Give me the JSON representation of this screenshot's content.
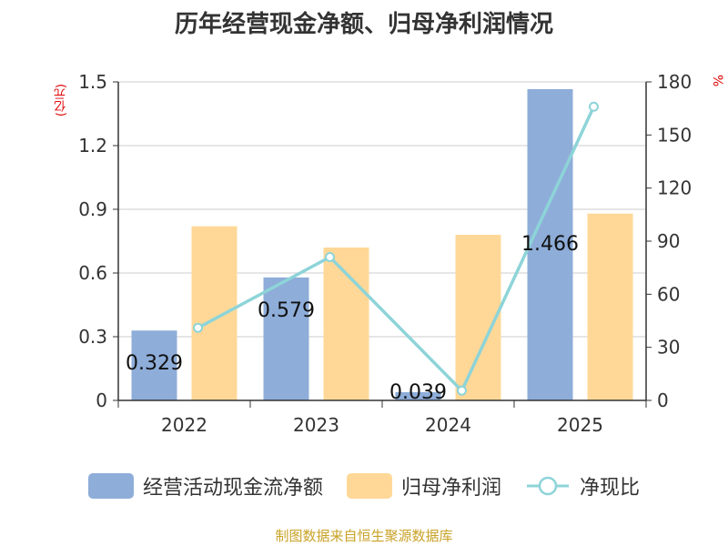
{
  "chart_data": {
    "type": "bar",
    "title": "历年经营现金净额、归母净利润情况",
    "categories": [
      "2022",
      "2023",
      "2024",
      "2025"
    ],
    "series": [
      {
        "name": "经营活动现金流净额",
        "kind": "bar",
        "axis": "left",
        "color": "#8eadd9",
        "values": [
          0.329,
          0.579,
          0.039,
          1.466
        ]
      },
      {
        "name": "归母净利润",
        "kind": "bar",
        "axis": "left",
        "color": "#ffd898",
        "values": [
          0.82,
          0.72,
          0.78,
          0.88
        ]
      },
      {
        "name": "净现比",
        "kind": "line",
        "axis": "right",
        "color": "#8dd4d8",
        "values": [
          41,
          81,
          5.5,
          166
        ]
      }
    ],
    "left_axis": {
      "unit": "(亿元)",
      "min": 0,
      "max": 1.5,
      "ticks": [
        "0",
        "0.3",
        "0.6",
        "0.9",
        "1.2",
        "1.5"
      ]
    },
    "right_axis": {
      "unit": "%",
      "min": 0,
      "max": 180,
      "ticks": [
        "0",
        "30",
        "60",
        "90",
        "120",
        "150",
        "180"
      ]
    },
    "data_labels": [
      "0.329",
      "0.579",
      "0.039",
      "1.466"
    ],
    "source": "制图数据来自恒生聚源数据库"
  }
}
